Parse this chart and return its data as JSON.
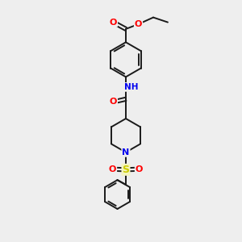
{
  "background_color": "#eeeeee",
  "bond_color": "#1a1a1a",
  "atom_colors": {
    "O": "#ff0000",
    "N": "#0000ee",
    "S": "#cccc00",
    "C": "#1a1a1a",
    "H": "#008080"
  },
  "fig_width": 3.0,
  "fig_height": 3.0,
  "dpi": 100
}
